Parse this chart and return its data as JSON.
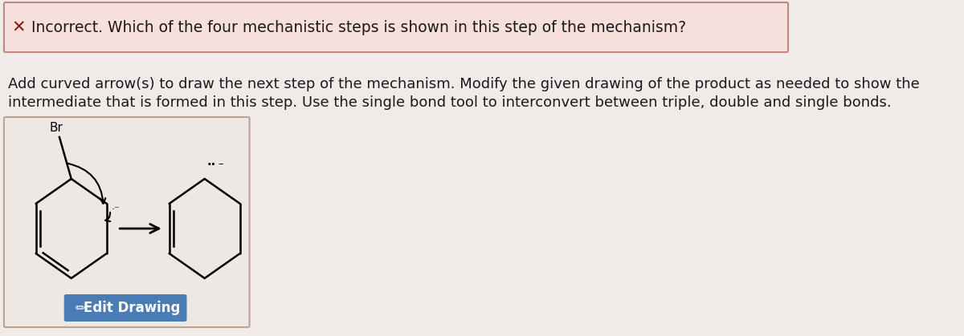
{
  "bg_color": "#f0ebe8",
  "error_box_color": "#f5e0dc",
  "error_box_border": "#c08880",
  "error_icon": "✕",
  "error_text": "Incorrect. Which of the four mechanistic steps is shown in this step of the mechanism?",
  "instruction_line1": "Add curved arrow(s) to draw the next step of the mechanism. Modify the given drawing of the product as needed to show the",
  "instruction_line2": "intermediate that is formed in this step. Use the single bond tool to interconvert between triple, double and single bonds.",
  "drawing_box_color": "#ede8e3",
  "drawing_box_border": "#c0a090",
  "button_color": "#4a7db5",
  "button_text": "Edit Drawing",
  "button_text_color": "#ffffff",
  "text_color": "#1a1a1a",
  "error_icon_color": "#8b1a1a",
  "font_size_error": 13.5,
  "font_size_instruction": 13,
  "font_size_button": 12
}
